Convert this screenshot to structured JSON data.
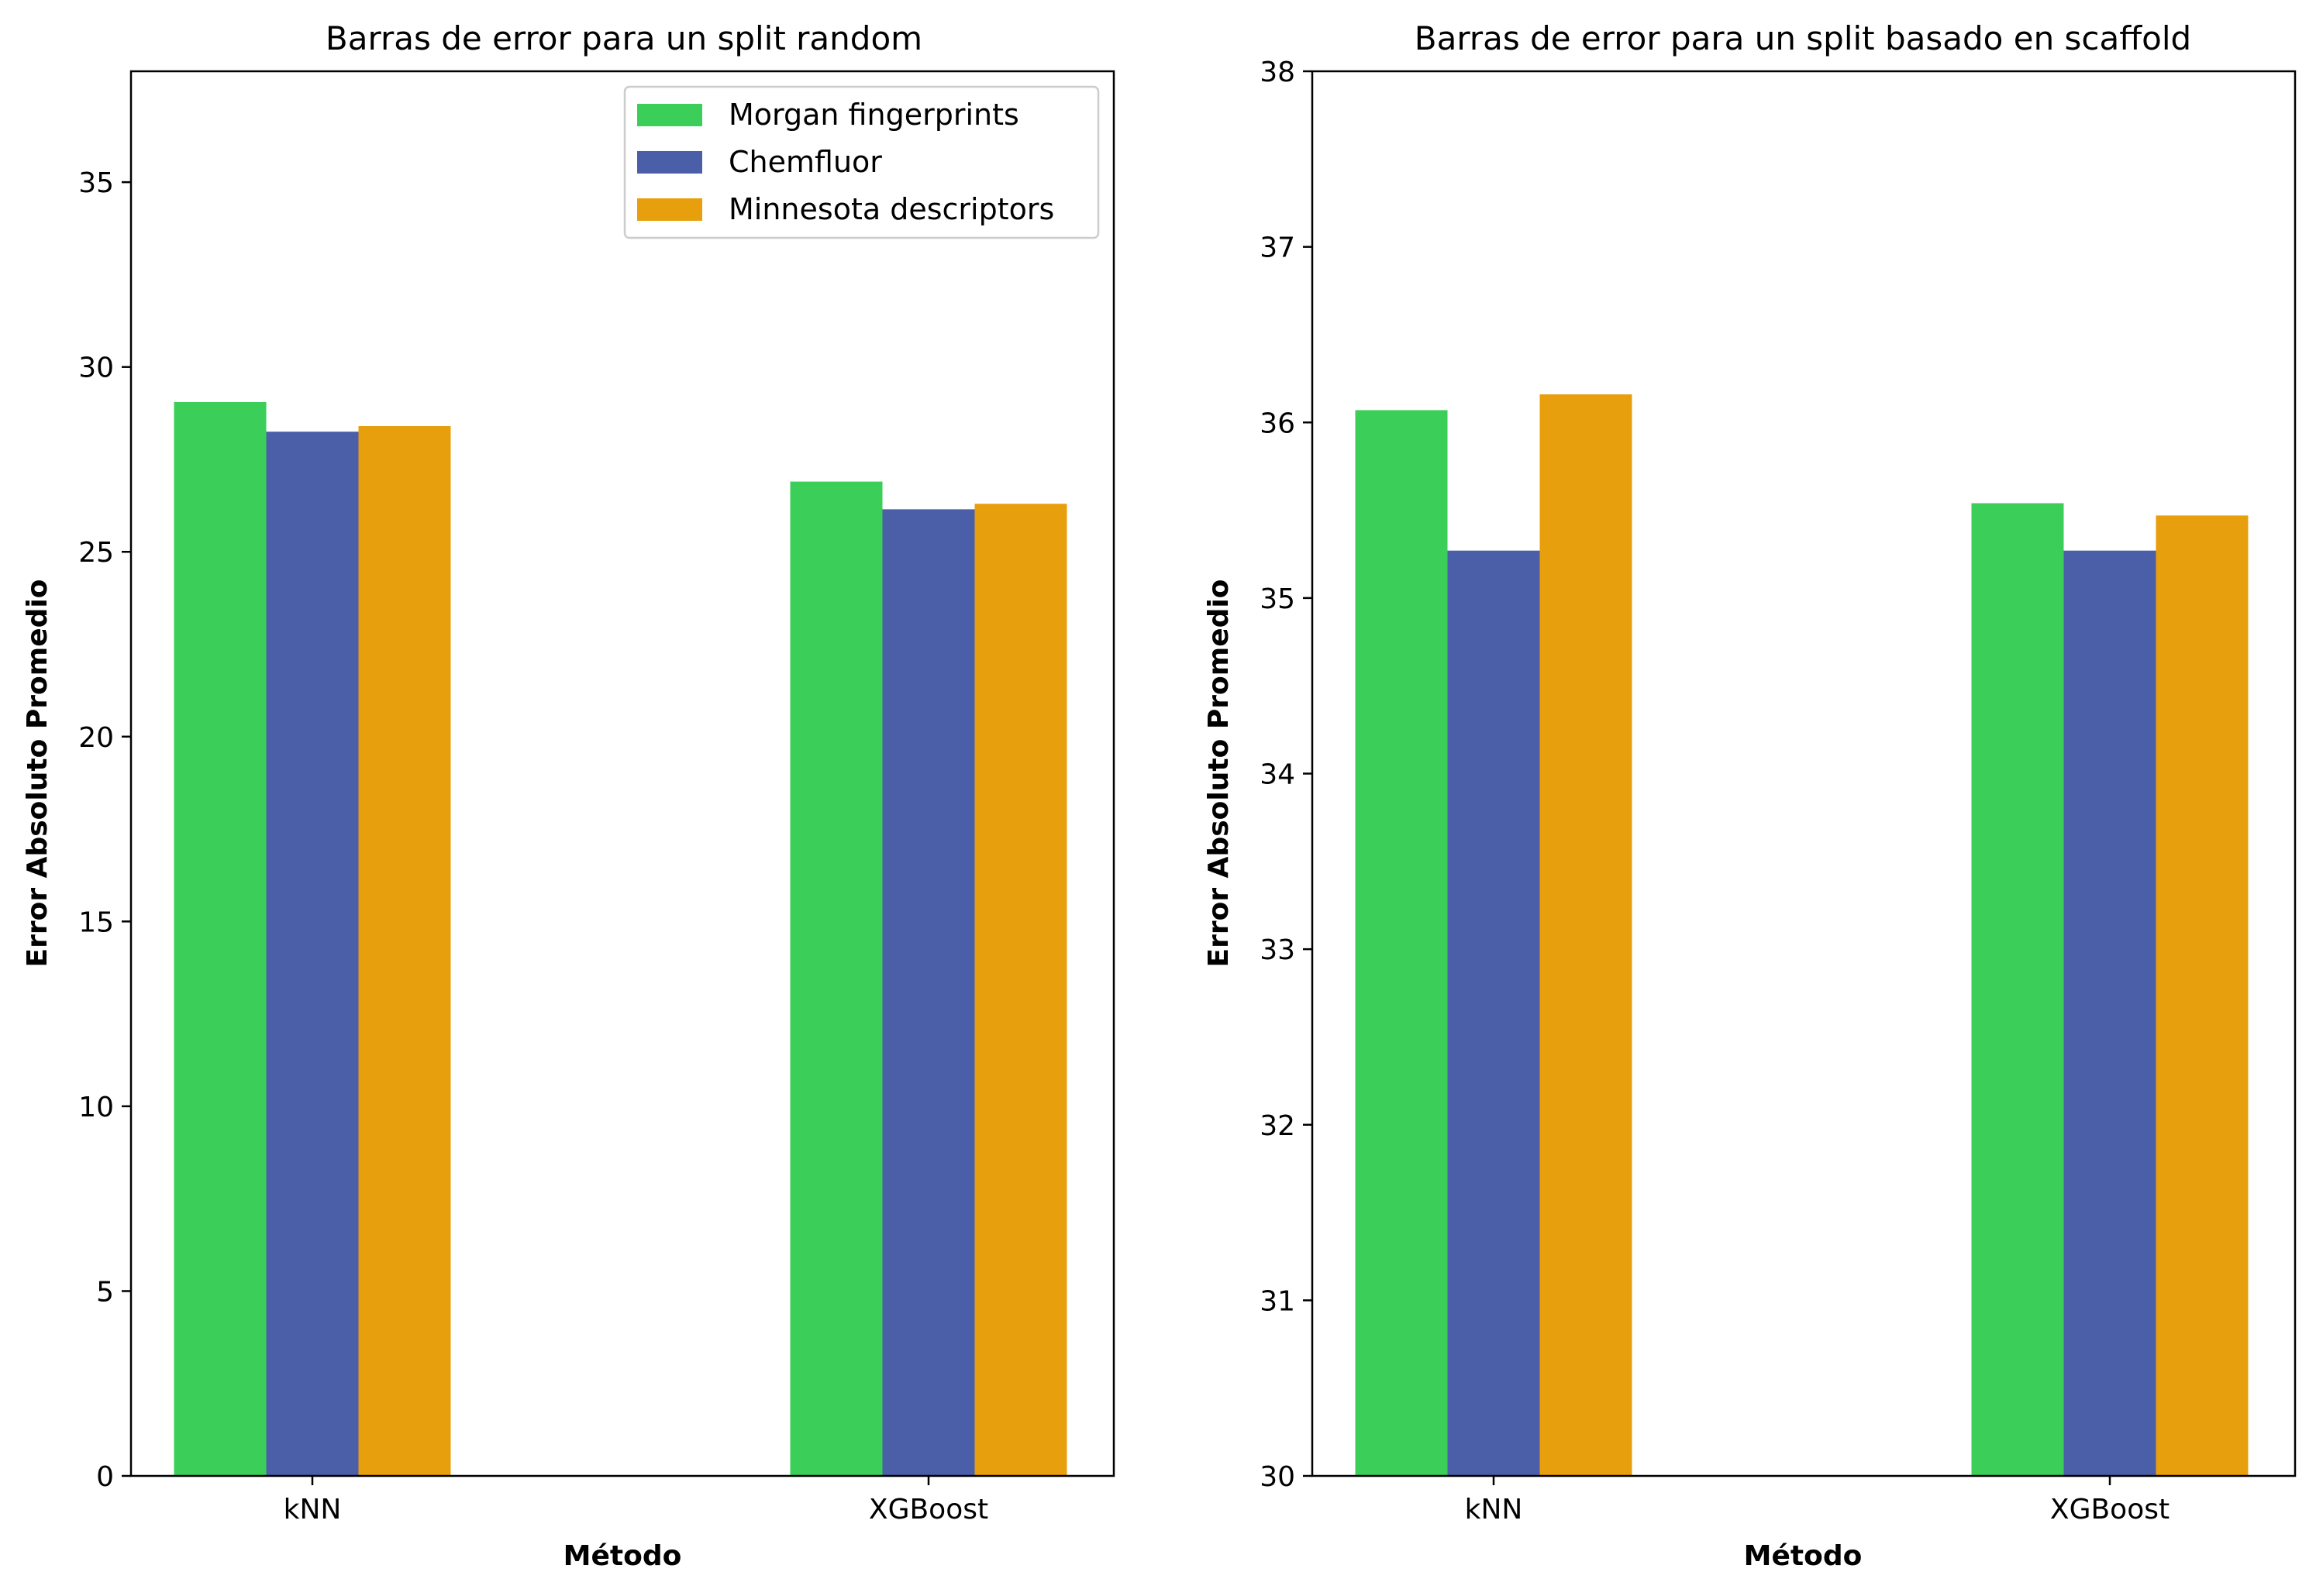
{
  "chart_data": [
    {
      "type": "bar",
      "title": "Barras de error para un split random",
      "xlabel": "Método",
      "ylabel": "Error Absoluto Promedio",
      "categories": [
        "kNN",
        "XGBoost"
      ],
      "series": [
        {
          "name": "Morgan fingerprints",
          "color": "#3bcf5a",
          "values": [
            29.05,
            26.9
          ]
        },
        {
          "name": "Chemfluor",
          "color": "#4b5ea8",
          "values": [
            28.25,
            26.15
          ]
        },
        {
          "name": "Minnesota descriptors",
          "color": "#e89f0e",
          "values": [
            28.4,
            26.3
          ]
        }
      ],
      "ylim": [
        0,
        38
      ],
      "yticks": [
        0,
        5,
        10,
        15,
        20,
        25,
        30,
        35
      ],
      "legend": "top-right",
      "grid": false
    },
    {
      "type": "bar",
      "title": "Barras de error para un split basado en scaffold",
      "xlabel": "Método",
      "ylabel": "Error Absoluto Promedio",
      "categories": [
        "kNN",
        "XGBoost"
      ],
      "series": [
        {
          "name": "Morgan fingerprints",
          "color": "#3bcf5a",
          "values": [
            36.07,
            35.54
          ]
        },
        {
          "name": "Chemfluor",
          "color": "#4b5ea8",
          "values": [
            35.27,
            35.27
          ]
        },
        {
          "name": "Minnesota descriptors",
          "color": "#e89f0e",
          "values": [
            36.16,
            35.47
          ]
        }
      ],
      "ylim": [
        30,
        38
      ],
      "yticks": [
        30,
        31,
        32,
        33,
        34,
        35,
        36,
        37,
        38
      ],
      "grid": false
    }
  ]
}
